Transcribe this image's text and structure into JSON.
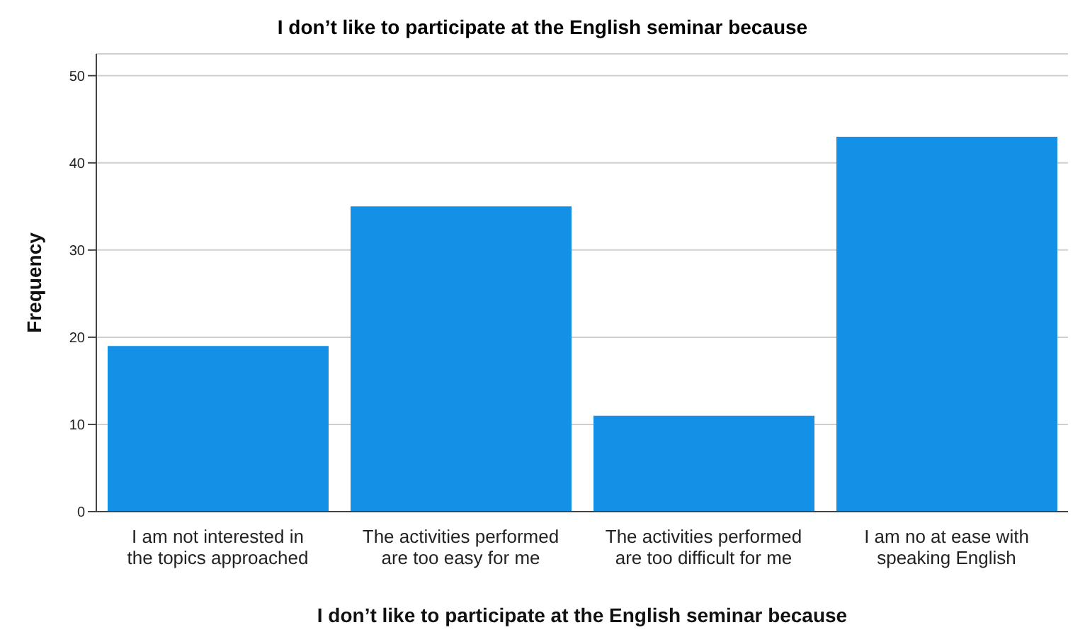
{
  "chart_data": {
    "type": "bar",
    "title": "I don’t like to participate at the English seminar because",
    "xlabel": "I don’t like to participate at the English seminar because",
    "ylabel": "Frequency",
    "categories": [
      "I am not interested in the topics approached",
      "The activities performed are too easy for me",
      "The activities performed are too difficult for me",
      "I am no at ease with speaking English"
    ],
    "values": [
      19,
      35,
      11,
      43
    ],
    "color": "#1491e6",
    "ylim": [
      0,
      52.5
    ],
    "yticks": [
      0,
      10,
      20,
      30,
      40,
      50
    ],
    "grid": "y"
  }
}
